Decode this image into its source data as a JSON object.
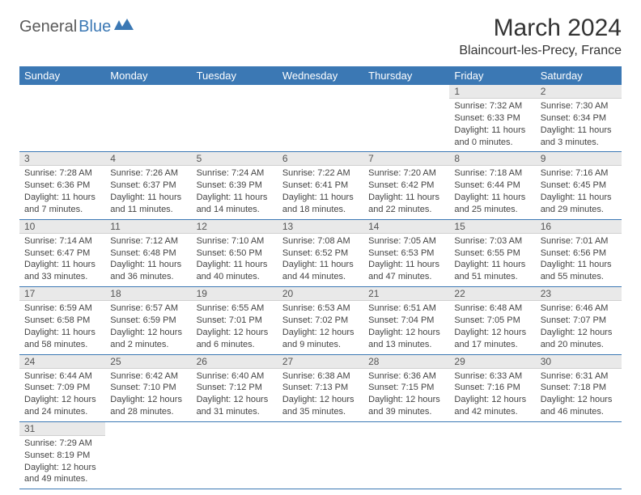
{
  "logo": {
    "part1": "General",
    "part2": "Blue"
  },
  "title": "March 2024",
  "location": "Blaincourt-les-Precy, France",
  "colors": {
    "header_bg": "#3b78b4",
    "header_fg": "#ffffff",
    "daynum_bg": "#e9e9e9"
  },
  "weekdays": [
    "Sunday",
    "Monday",
    "Tuesday",
    "Wednesday",
    "Thursday",
    "Friday",
    "Saturday"
  ],
  "weeks": [
    [
      {
        "n": "",
        "sr": "",
        "ss": "",
        "dl": ""
      },
      {
        "n": "",
        "sr": "",
        "ss": "",
        "dl": ""
      },
      {
        "n": "",
        "sr": "",
        "ss": "",
        "dl": ""
      },
      {
        "n": "",
        "sr": "",
        "ss": "",
        "dl": ""
      },
      {
        "n": "",
        "sr": "",
        "ss": "",
        "dl": ""
      },
      {
        "n": "1",
        "sr": "Sunrise: 7:32 AM",
        "ss": "Sunset: 6:33 PM",
        "dl": "Daylight: 11 hours and 0 minutes."
      },
      {
        "n": "2",
        "sr": "Sunrise: 7:30 AM",
        "ss": "Sunset: 6:34 PM",
        "dl": "Daylight: 11 hours and 3 minutes."
      }
    ],
    [
      {
        "n": "3",
        "sr": "Sunrise: 7:28 AM",
        "ss": "Sunset: 6:36 PM",
        "dl": "Daylight: 11 hours and 7 minutes."
      },
      {
        "n": "4",
        "sr": "Sunrise: 7:26 AM",
        "ss": "Sunset: 6:37 PM",
        "dl": "Daylight: 11 hours and 11 minutes."
      },
      {
        "n": "5",
        "sr": "Sunrise: 7:24 AM",
        "ss": "Sunset: 6:39 PM",
        "dl": "Daylight: 11 hours and 14 minutes."
      },
      {
        "n": "6",
        "sr": "Sunrise: 7:22 AM",
        "ss": "Sunset: 6:41 PM",
        "dl": "Daylight: 11 hours and 18 minutes."
      },
      {
        "n": "7",
        "sr": "Sunrise: 7:20 AM",
        "ss": "Sunset: 6:42 PM",
        "dl": "Daylight: 11 hours and 22 minutes."
      },
      {
        "n": "8",
        "sr": "Sunrise: 7:18 AM",
        "ss": "Sunset: 6:44 PM",
        "dl": "Daylight: 11 hours and 25 minutes."
      },
      {
        "n": "9",
        "sr": "Sunrise: 7:16 AM",
        "ss": "Sunset: 6:45 PM",
        "dl": "Daylight: 11 hours and 29 minutes."
      }
    ],
    [
      {
        "n": "10",
        "sr": "Sunrise: 7:14 AM",
        "ss": "Sunset: 6:47 PM",
        "dl": "Daylight: 11 hours and 33 minutes."
      },
      {
        "n": "11",
        "sr": "Sunrise: 7:12 AM",
        "ss": "Sunset: 6:48 PM",
        "dl": "Daylight: 11 hours and 36 minutes."
      },
      {
        "n": "12",
        "sr": "Sunrise: 7:10 AM",
        "ss": "Sunset: 6:50 PM",
        "dl": "Daylight: 11 hours and 40 minutes."
      },
      {
        "n": "13",
        "sr": "Sunrise: 7:08 AM",
        "ss": "Sunset: 6:52 PM",
        "dl": "Daylight: 11 hours and 44 minutes."
      },
      {
        "n": "14",
        "sr": "Sunrise: 7:05 AM",
        "ss": "Sunset: 6:53 PM",
        "dl": "Daylight: 11 hours and 47 minutes."
      },
      {
        "n": "15",
        "sr": "Sunrise: 7:03 AM",
        "ss": "Sunset: 6:55 PM",
        "dl": "Daylight: 11 hours and 51 minutes."
      },
      {
        "n": "16",
        "sr": "Sunrise: 7:01 AM",
        "ss": "Sunset: 6:56 PM",
        "dl": "Daylight: 11 hours and 55 minutes."
      }
    ],
    [
      {
        "n": "17",
        "sr": "Sunrise: 6:59 AM",
        "ss": "Sunset: 6:58 PM",
        "dl": "Daylight: 11 hours and 58 minutes."
      },
      {
        "n": "18",
        "sr": "Sunrise: 6:57 AM",
        "ss": "Sunset: 6:59 PM",
        "dl": "Daylight: 12 hours and 2 minutes."
      },
      {
        "n": "19",
        "sr": "Sunrise: 6:55 AM",
        "ss": "Sunset: 7:01 PM",
        "dl": "Daylight: 12 hours and 6 minutes."
      },
      {
        "n": "20",
        "sr": "Sunrise: 6:53 AM",
        "ss": "Sunset: 7:02 PM",
        "dl": "Daylight: 12 hours and 9 minutes."
      },
      {
        "n": "21",
        "sr": "Sunrise: 6:51 AM",
        "ss": "Sunset: 7:04 PM",
        "dl": "Daylight: 12 hours and 13 minutes."
      },
      {
        "n": "22",
        "sr": "Sunrise: 6:48 AM",
        "ss": "Sunset: 7:05 PM",
        "dl": "Daylight: 12 hours and 17 minutes."
      },
      {
        "n": "23",
        "sr": "Sunrise: 6:46 AM",
        "ss": "Sunset: 7:07 PM",
        "dl": "Daylight: 12 hours and 20 minutes."
      }
    ],
    [
      {
        "n": "24",
        "sr": "Sunrise: 6:44 AM",
        "ss": "Sunset: 7:09 PM",
        "dl": "Daylight: 12 hours and 24 minutes."
      },
      {
        "n": "25",
        "sr": "Sunrise: 6:42 AM",
        "ss": "Sunset: 7:10 PM",
        "dl": "Daylight: 12 hours and 28 minutes."
      },
      {
        "n": "26",
        "sr": "Sunrise: 6:40 AM",
        "ss": "Sunset: 7:12 PM",
        "dl": "Daylight: 12 hours and 31 minutes."
      },
      {
        "n": "27",
        "sr": "Sunrise: 6:38 AM",
        "ss": "Sunset: 7:13 PM",
        "dl": "Daylight: 12 hours and 35 minutes."
      },
      {
        "n": "28",
        "sr": "Sunrise: 6:36 AM",
        "ss": "Sunset: 7:15 PM",
        "dl": "Daylight: 12 hours and 39 minutes."
      },
      {
        "n": "29",
        "sr": "Sunrise: 6:33 AM",
        "ss": "Sunset: 7:16 PM",
        "dl": "Daylight: 12 hours and 42 minutes."
      },
      {
        "n": "30",
        "sr": "Sunrise: 6:31 AM",
        "ss": "Sunset: 7:18 PM",
        "dl": "Daylight: 12 hours and 46 minutes."
      }
    ],
    [
      {
        "n": "31",
        "sr": "Sunrise: 7:29 AM",
        "ss": "Sunset: 8:19 PM",
        "dl": "Daylight: 12 hours and 49 minutes."
      },
      {
        "n": "",
        "sr": "",
        "ss": "",
        "dl": ""
      },
      {
        "n": "",
        "sr": "",
        "ss": "",
        "dl": ""
      },
      {
        "n": "",
        "sr": "",
        "ss": "",
        "dl": ""
      },
      {
        "n": "",
        "sr": "",
        "ss": "",
        "dl": ""
      },
      {
        "n": "",
        "sr": "",
        "ss": "",
        "dl": ""
      },
      {
        "n": "",
        "sr": "",
        "ss": "",
        "dl": ""
      }
    ]
  ]
}
